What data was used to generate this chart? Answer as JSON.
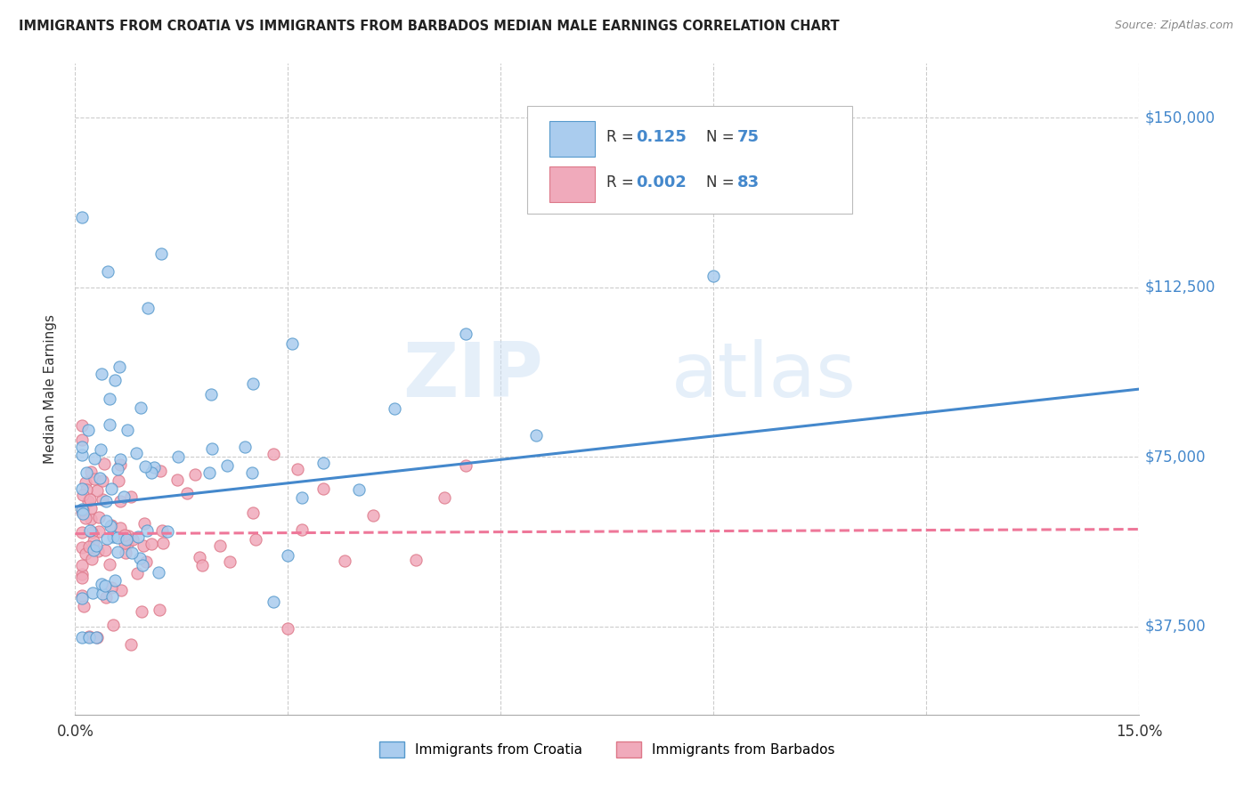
{
  "title": "IMMIGRANTS FROM CROATIA VS IMMIGRANTS FROM BARBADOS MEDIAN MALE EARNINGS CORRELATION CHART",
  "source": "Source: ZipAtlas.com",
  "ylabel": "Median Male Earnings",
  "xlim": [
    0.0,
    0.15
  ],
  "ylim": [
    18000,
    162000
  ],
  "yticks": [
    37500,
    75000,
    112500,
    150000
  ],
  "ytick_labels": [
    "$37,500",
    "$75,000",
    "$112,500",
    "$150,000"
  ],
  "xtick_positions": [
    0.0,
    0.03,
    0.06,
    0.09,
    0.12,
    0.15
  ],
  "xtick_labels": [
    "0.0%",
    "",
    "",
    "",
    "",
    "15.0%"
  ],
  "croatia_color": "#aaccee",
  "barbados_color": "#f0aabb",
  "croatia_edge_color": "#5599cc",
  "barbados_edge_color": "#dd7788",
  "croatia_line_color": "#4488cc",
  "barbados_line_color": "#ee7799",
  "croatia_R": "0.125",
  "croatia_N": "75",
  "barbados_R": "0.002",
  "barbados_N": "83",
  "watermark": "ZIPatlas",
  "background_color": "#ffffff",
  "grid_color": "#cccccc",
  "croatia_trendline_x": [
    0.0,
    0.15
  ],
  "croatia_trendline_y": [
    64000,
    90000
  ],
  "barbados_trendline_x": [
    0.0,
    0.15
  ],
  "barbados_trendline_y": [
    58000,
    59000
  ]
}
